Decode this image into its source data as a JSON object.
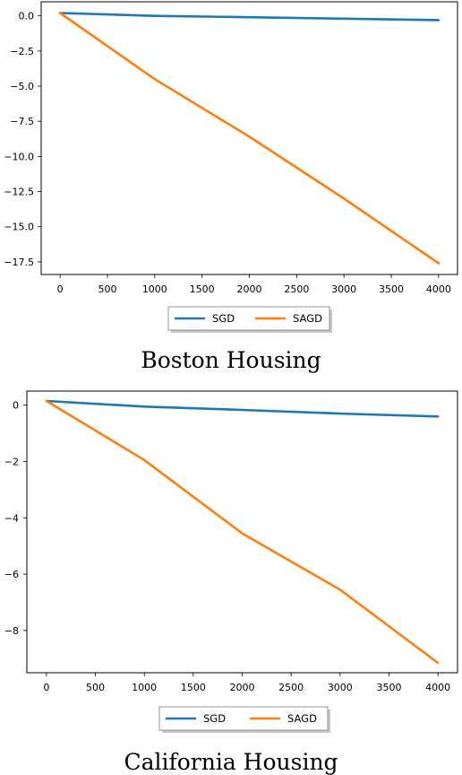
{
  "chart_data": [
    {
      "type": "line",
      "title": "Boston Housing",
      "xlim": [
        -200,
        4200
      ],
      "ylim": [
        -18.4,
        1.0
      ],
      "xticks": [
        0,
        500,
        1000,
        1500,
        2000,
        2500,
        3000,
        3500,
        4000
      ],
      "xtick_labels": [
        "0",
        "500",
        "1000",
        "1500",
        "2000",
        "2500",
        "3000",
        "3500",
        "4000"
      ],
      "yticks": [
        0,
        -2.5,
        -5,
        -7.5,
        -10,
        -12.5,
        -15,
        -17.5
      ],
      "ytick_labels": [
        "0.0",
        "−2.5",
        "−5.0",
        "−7.5",
        "−10.0",
        "−12.5",
        "−15.0",
        "−17.5"
      ],
      "legend_position": "bottom",
      "series": [
        {
          "name": "SGD",
          "color": "#1f77b4",
          "x": [
            0,
            1000,
            2000,
            3000,
            4000
          ],
          "y": [
            0.2,
            0.0,
            -0.1,
            -0.2,
            -0.3
          ]
        },
        {
          "name": "SAGD",
          "color": "#ff7f0e",
          "x": [
            0,
            1000,
            2000,
            3000,
            4000
          ],
          "y": [
            0.2,
            -4.5,
            -8.6,
            -13.0,
            -17.6
          ]
        }
      ]
    },
    {
      "type": "line",
      "title": "California Housing",
      "xlim": [
        -200,
        4200
      ],
      "ylim": [
        -9.5,
        0.5
      ],
      "xticks": [
        0,
        500,
        1000,
        1500,
        2000,
        2500,
        3000,
        3500,
        4000
      ],
      "xtick_labels": [
        "0",
        "500",
        "1000",
        "1500",
        "2000",
        "2500",
        "3000",
        "3500",
        "4000"
      ],
      "yticks": [
        0,
        -2,
        -4,
        -6,
        -8
      ],
      "ytick_labels": [
        "0",
        "−2",
        "−4",
        "−6",
        "−8"
      ],
      "legend_position": "bottom",
      "series": [
        {
          "name": "SGD",
          "color": "#1f77b4",
          "x": [
            0,
            1000,
            2000,
            3000,
            4000
          ],
          "y": [
            0.15,
            -0.05,
            -0.17,
            -0.3,
            -0.4
          ]
        },
        {
          "name": "SAGD",
          "color": "#ff7f0e",
          "x": [
            0,
            1000,
            2000,
            3000,
            4000
          ],
          "y": [
            0.15,
            -1.95,
            -4.55,
            -6.55,
            -9.15
          ]
        }
      ]
    }
  ]
}
